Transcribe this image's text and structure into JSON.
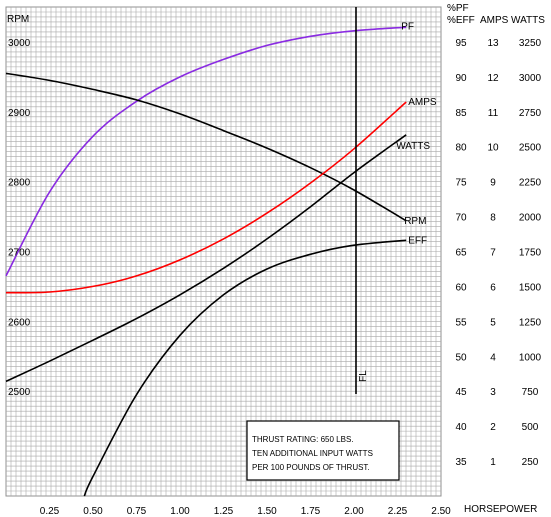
{
  "chart_data": {
    "type": "line",
    "x_axis": {
      "label": "HORSEPOWER",
      "range": [
        0,
        2.5
      ],
      "ticks": [
        "0.25",
        "0.50",
        "0.75",
        "1.00",
        "1.25",
        "1.50",
        "1.75",
        "2.00",
        "2.25",
        "2.50"
      ]
    },
    "left_axis": {
      "label": "RPM",
      "range": [
        2350,
        3050
      ],
      "ticks": [
        "3000",
        "2900",
        "2800",
        "2700",
        "2600",
        "2500"
      ]
    },
    "right_axes": {
      "headers": {
        "pf": "%PF",
        "eff": "%EFF",
        "amps": "AMPS",
        "watts": "WATTS"
      },
      "pct_range": [
        30,
        100
      ],
      "rows": [
        {
          "pct": "95",
          "amps": "13",
          "watts": "3250"
        },
        {
          "pct": "90",
          "amps": "12",
          "watts": "3000"
        },
        {
          "pct": "85",
          "amps": "11",
          "watts": "2750"
        },
        {
          "pct": "80",
          "amps": "10",
          "watts": "2500"
        },
        {
          "pct": "75",
          "amps": "9",
          "watts": "2250"
        },
        {
          "pct": "70",
          "amps": "8",
          "watts": "2000"
        },
        {
          "pct": "65",
          "amps": "7",
          "watts": "1750"
        },
        {
          "pct": "60",
          "amps": "6",
          "watts": "1500"
        },
        {
          "pct": "55",
          "amps": "5",
          "watts": "1250"
        },
        {
          "pct": "50",
          "amps": "4",
          "watts": "1000"
        },
        {
          "pct": "45",
          "amps": "3",
          "watts": "750"
        },
        {
          "pct": "40",
          "amps": "2",
          "watts": "500"
        },
        {
          "pct": "35",
          "amps": "1",
          "watts": "250"
        }
      ]
    },
    "series": [
      {
        "name": "PF",
        "axis": "pct",
        "color": "#8a2be2",
        "x": [
          0.0,
          0.25,
          0.5,
          0.75,
          1.0,
          1.25,
          1.5,
          1.75,
          2.0,
          2.3
        ],
        "y": [
          61.5,
          73.5,
          81.5,
          86.5,
          90.0,
          92.5,
          94.5,
          95.8,
          96.6,
          97.1
        ]
      },
      {
        "name": "RPM",
        "axis": "rpm",
        "color": "#000000",
        "x": [
          0.0,
          0.25,
          0.5,
          0.75,
          1.0,
          1.25,
          1.5,
          1.75,
          2.0,
          2.3
        ],
        "y": [
          2955,
          2945,
          2932,
          2917,
          2897,
          2873,
          2848,
          2820,
          2788,
          2744
        ]
      },
      {
        "name": "AMPS",
        "axis": "pct",
        "color": "#ff0000",
        "x": [
          0.0,
          0.25,
          0.5,
          0.75,
          1.0,
          1.25,
          1.5,
          1.75,
          2.0,
          2.3
        ],
        "y": [
          59.1,
          59.2,
          60.0,
          61.5,
          63.8,
          66.8,
          70.5,
          74.8,
          79.7,
          86.4
        ]
      },
      {
        "name": "WATTS",
        "axis": "pct",
        "color": "#000000",
        "x": [
          0.0,
          0.25,
          0.5,
          0.75,
          1.0,
          1.25,
          1.5,
          1.75,
          2.0,
          2.3
        ],
        "y": [
          46.4,
          49.3,
          52.3,
          55.4,
          58.8,
          62.6,
          66.8,
          71.4,
          76.3,
          81.7
        ]
      },
      {
        "name": "EFF",
        "axis": "pct",
        "color": "#000000",
        "x": [
          0.45,
          0.5,
          0.75,
          1.0,
          1.25,
          1.5,
          1.75,
          2.0,
          2.3
        ],
        "y": [
          30.0,
          32.8,
          44.5,
          53.0,
          58.8,
          62.5,
          64.6,
          65.9,
          66.6
        ]
      }
    ],
    "annotations": {
      "fl_label": "FL",
      "fl_x": 2.0,
      "note_lines": [
        "THRUST RATING: 650 LBS.",
        "TEN ADDITIONAL INPUT WATTS",
        "PER 100 POUNDS OF THRUST."
      ]
    },
    "grid": true
  }
}
